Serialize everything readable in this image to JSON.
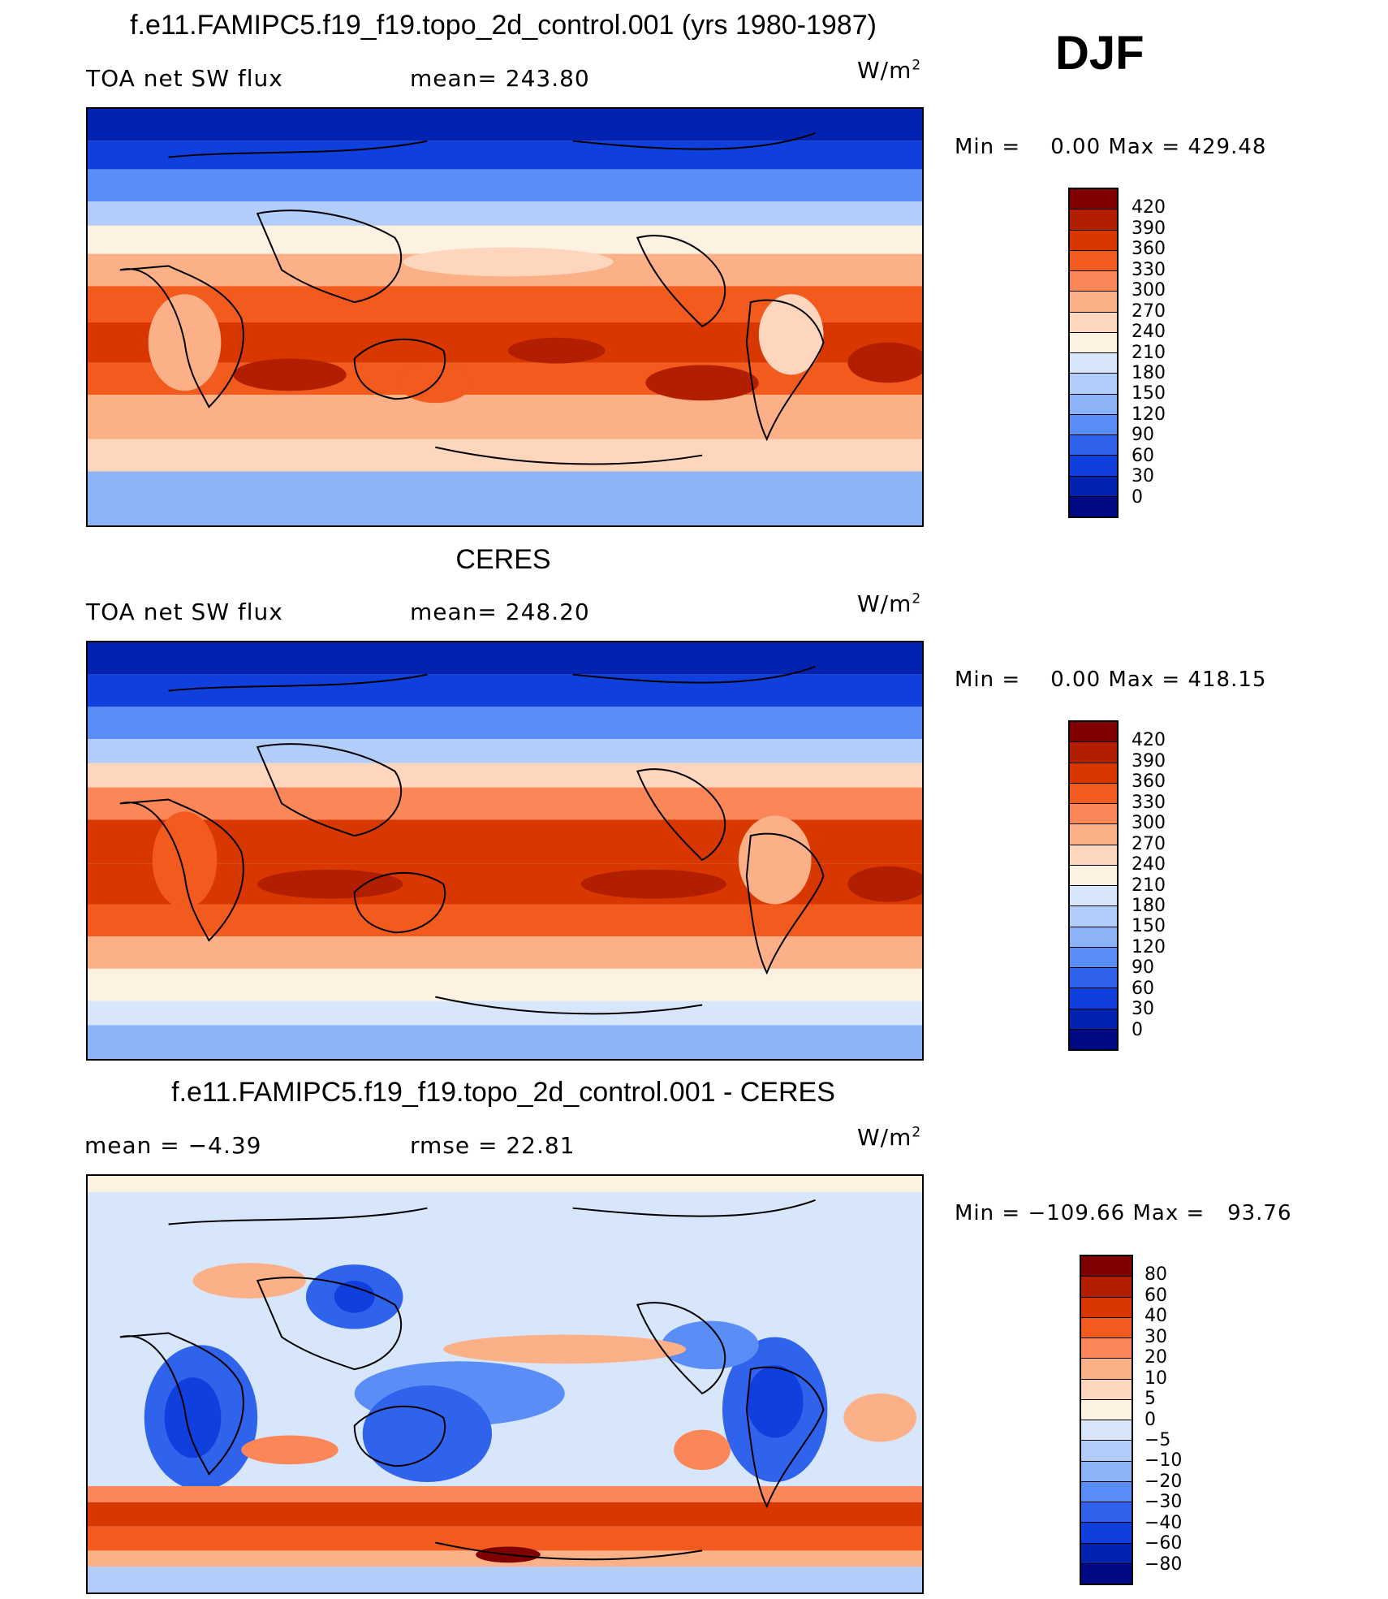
{
  "header": {
    "season": "DJF"
  },
  "panels": [
    {
      "id": "model",
      "title": "f.e11.FAMIPC5.f19_f19.topo_2d_control.001 (yrs 1980-1987)",
      "left_text": "TOA net SW flux",
      "mid_text": "mean= 243.80",
      "units_base": "W/m",
      "units_sup": "2",
      "minmax": "Min =    0.00 Max = 429.48",
      "colorbar": {
        "colors": [
          "#7e0000",
          "#b21e00",
          "#d83700",
          "#f25a1e",
          "#fb8658",
          "#fcb088",
          "#fdd6bd",
          "#fdf1e2",
          "#d8e6fb",
          "#b3cdfa",
          "#8cb2f8",
          "#5a8df5",
          "#2f63ec",
          "#0f3fdc",
          "#0422b0",
          "#000a82"
        ],
        "labels": [
          "420",
          "390",
          "360",
          "330",
          "300",
          "270",
          "240",
          "210",
          "180",
          "150",
          "120",
          "90",
          "60",
          "30",
          "0"
        ]
      }
    },
    {
      "id": "obs",
      "title": "CERES",
      "left_text": "TOA net SW flux",
      "mid_text": "mean= 248.20",
      "units_base": "W/m",
      "units_sup": "2",
      "minmax": "Min =    0.00 Max = 418.15",
      "colorbar": {
        "colors": [
          "#7e0000",
          "#b21e00",
          "#d83700",
          "#f25a1e",
          "#fb8658",
          "#fcb088",
          "#fdd6bd",
          "#fdf1e2",
          "#d8e6fb",
          "#b3cdfa",
          "#8cb2f8",
          "#5a8df5",
          "#2f63ec",
          "#0f3fdc",
          "#0422b0",
          "#000a82"
        ],
        "labels": [
          "420",
          "390",
          "360",
          "330",
          "300",
          "270",
          "240",
          "210",
          "180",
          "150",
          "120",
          "90",
          "60",
          "30",
          "0"
        ]
      }
    },
    {
      "id": "diff",
      "title": "f.e11.FAMIPC5.f19_f19.topo_2d_control.001 - CERES",
      "left_text": "mean =   −4.39",
      "mid_text": "rmse =   22.81",
      "units_base": "W/m",
      "units_sup": "2",
      "minmax": "Min = −109.66 Max =   93.76",
      "colorbar": {
        "colors": [
          "#7e0000",
          "#b21e00",
          "#d83700",
          "#f25a1e",
          "#fb8658",
          "#fcb088",
          "#fdd6bd",
          "#fdf1e2",
          "#d8e6fb",
          "#b3cdfa",
          "#8cb2f8",
          "#5a8df5",
          "#2f63ec",
          "#0f3fdc",
          "#0422b0",
          "#000a82"
        ],
        "labels": [
          "80",
          "60",
          "40",
          "30",
          "20",
          "10",
          "5",
          "0",
          "−5",
          "−10",
          "−20",
          "−30",
          "−40",
          "−60",
          "−80"
        ]
      }
    }
  ]
}
